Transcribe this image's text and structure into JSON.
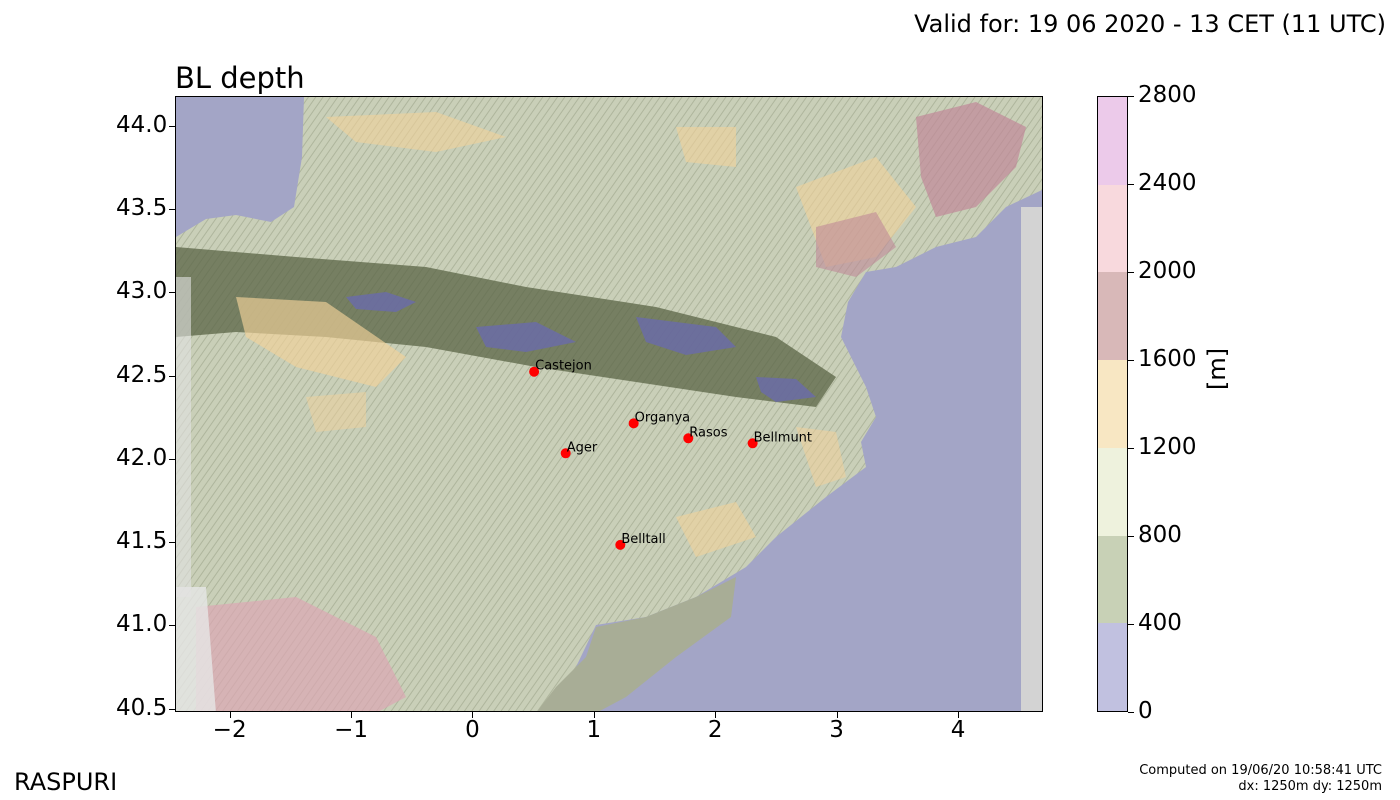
{
  "header": {
    "valid_text": "Valid for: 19 06 2020 - 13 CET (11 UTC)"
  },
  "map": {
    "title": "BL depth",
    "x_ticks": [
      "−2",
      "−1",
      "0",
      "1",
      "2",
      "3",
      "4"
    ],
    "y_ticks": [
      "44.0",
      "43.5",
      "43.0",
      "42.5",
      "42.0",
      "41.5",
      "41.0",
      "40.5"
    ],
    "lon_range": [
      -2.45,
      4.7
    ],
    "lat_range": [
      40.48,
      44.18
    ],
    "stations": [
      {
        "name": "Castejon",
        "lon": 0.5,
        "lat": 42.53
      },
      {
        "name": "Organya",
        "lon": 1.32,
        "lat": 42.22
      },
      {
        "name": "Rasos",
        "lon": 1.77,
        "lat": 42.13
      },
      {
        "name": "Bellmunt",
        "lon": 2.3,
        "lat": 42.1
      },
      {
        "name": "Ager",
        "lon": 0.76,
        "lat": 42.04
      },
      {
        "name": "Belltall",
        "lon": 1.21,
        "lat": 41.49
      }
    ],
    "colors": {
      "sea": "#a3a5c6",
      "terrain": "#c6cdb4",
      "station": "#ff0000"
    }
  },
  "colorbar": {
    "unit": "[m]",
    "labels": [
      "2800",
      "2400",
      "2000",
      "1600",
      "1200",
      "800",
      "400",
      "0"
    ],
    "bins": [
      {
        "range": "0-400",
        "color": "#c1c1e0"
      },
      {
        "range": "400-800",
        "color": "#c8d1b6"
      },
      {
        "range": "800-1200",
        "color": "#eef2dd"
      },
      {
        "range": "1200-1600",
        "color": "#f8e7c3"
      },
      {
        "range": "1600-2000",
        "color": "#d8b8b8"
      },
      {
        "range": "2000-2400",
        "color": "#f8d9dd"
      },
      {
        "range": "2400-2800",
        "color": "#eccaea"
      }
    ]
  },
  "footer": {
    "brand": "RASPURI",
    "computed": "Computed on 19/06/20 10:58:41 UTC",
    "resolution": "dx: 1250m dy: 1250m"
  }
}
